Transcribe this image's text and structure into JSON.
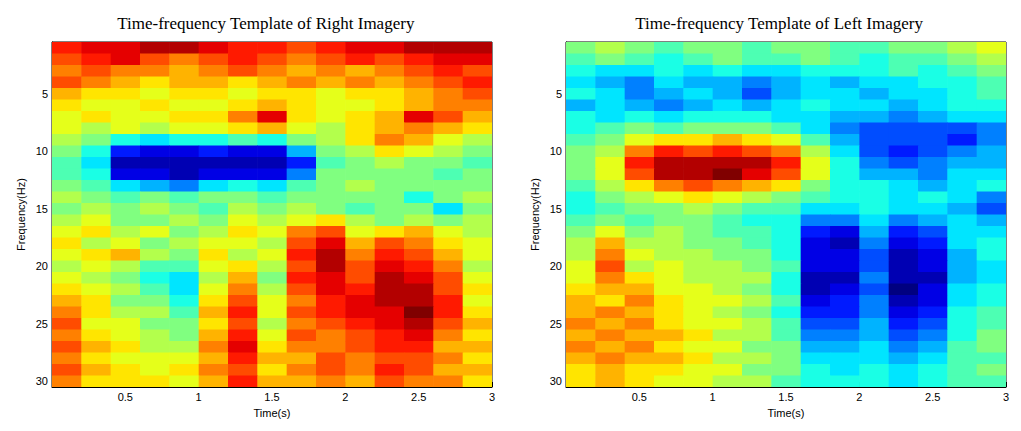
{
  "chart_data": [
    {
      "type": "heatmap",
      "title": "Time-frequency Template of Right Imagery",
      "xlabel": "Time(s)",
      "ylabel": "Frequency(Hz)",
      "x": [
        0.1,
        0.3,
        0.5,
        0.7,
        0.9,
        1.1,
        1.3,
        1.5,
        1.7,
        1.9,
        2.1,
        2.3,
        2.5,
        2.7,
        2.9
      ],
      "y": [
        1,
        2,
        3,
        4,
        5,
        6,
        7,
        8,
        9,
        10,
        11,
        12,
        13,
        14,
        15,
        16,
        17,
        18,
        19,
        20,
        21,
        22,
        23,
        24,
        25,
        26,
        27,
        28,
        29,
        30
      ],
      "xlim": [
        0,
        3
      ],
      "ylim": [
        30.5,
        0.5
      ],
      "xticks": [
        0.5,
        1,
        1.5,
        2,
        2.5,
        3
      ],
      "yticks": [
        5,
        10,
        15,
        20,
        25,
        30
      ],
      "color_range": [
        -1,
        1
      ],
      "values": [
        [
          0.7,
          0.8,
          0.8,
          0.9,
          0.9,
          0.8,
          0.7,
          0.7,
          0.6,
          0.7,
          0.8,
          0.8,
          0.9,
          0.9,
          0.9
        ],
        [
          0.6,
          0.7,
          0.8,
          0.6,
          0.5,
          0.6,
          0.7,
          0.6,
          0.5,
          0.6,
          0.7,
          0.6,
          0.7,
          0.8,
          0.8
        ],
        [
          0.5,
          0.6,
          0.5,
          0.5,
          0.4,
          0.5,
          0.6,
          0.5,
          0.4,
          0.5,
          0.4,
          0.5,
          0.6,
          0.7,
          0.6
        ],
        [
          0.6,
          0.5,
          0.4,
          0.3,
          0.4,
          0.4,
          0.3,
          0.4,
          0.5,
          0.4,
          0.5,
          0.4,
          0.5,
          0.6,
          0.7
        ],
        [
          0.4,
          0.3,
          0.3,
          0.2,
          0.3,
          0.3,
          0.2,
          0.3,
          0.3,
          0.2,
          0.3,
          0.3,
          0.4,
          0.5,
          0.6
        ],
        [
          0.3,
          0.2,
          0.2,
          0.3,
          0.2,
          0.2,
          0.3,
          0.4,
          0.3,
          0.2,
          0.2,
          0.3,
          0.4,
          0.5,
          0.5
        ],
        [
          0.2,
          0.3,
          0.2,
          0.2,
          0.3,
          0.3,
          0.5,
          0.8,
          0.3,
          0.2,
          0.3,
          0.4,
          0.8,
          0.6,
          0.4
        ],
        [
          0.2,
          0.1,
          0.2,
          0.1,
          0.2,
          0.2,
          0.3,
          0.4,
          0.2,
          0.1,
          0.3,
          0.4,
          0.5,
          0.4,
          0.3
        ],
        [
          0.1,
          0.0,
          -0.2,
          -0.3,
          -0.2,
          -0.2,
          -0.1,
          -0.2,
          0.0,
          0.1,
          0.3,
          0.5,
          0.4,
          0.2,
          0.1
        ],
        [
          0.0,
          -0.2,
          -0.7,
          -0.8,
          -0.8,
          -0.7,
          -0.8,
          -0.8,
          -0.4,
          0.0,
          0.1,
          0.3,
          0.2,
          0.1,
          0.0
        ],
        [
          -0.1,
          -0.3,
          -0.9,
          -0.9,
          -0.9,
          -0.9,
          -0.9,
          -0.9,
          -0.7,
          -0.1,
          0.0,
          0.1,
          0.0,
          0.0,
          -0.1
        ],
        [
          -0.1,
          -0.2,
          -0.8,
          -0.8,
          -0.9,
          -0.8,
          -0.8,
          -0.8,
          -0.5,
          0.0,
          0.0,
          0.0,
          0.0,
          -0.1,
          0.0
        ],
        [
          0.0,
          -0.1,
          -0.3,
          -0.4,
          -0.5,
          -0.3,
          -0.2,
          -0.3,
          -0.1,
          0.0,
          0.1,
          0.0,
          0.0,
          0.0,
          0.0
        ],
        [
          0.1,
          0.0,
          -0.1,
          0.0,
          -0.1,
          0.0,
          0.0,
          -0.1,
          0.0,
          0.0,
          0.0,
          0.0,
          -0.2,
          0.0,
          0.1
        ],
        [
          0.0,
          0.1,
          0.0,
          0.1,
          0.0,
          -0.1,
          0.1,
          0.0,
          0.1,
          0.0,
          -0.1,
          0.0,
          0.0,
          -0.3,
          0.0
        ],
        [
          0.1,
          0.2,
          0.0,
          0.0,
          0.1,
          0.0,
          0.2,
          0.1,
          0.2,
          0.3,
          0.1,
          0.0,
          0.1,
          0.0,
          0.1
        ],
        [
          0.2,
          0.3,
          0.1,
          0.2,
          0.0,
          0.1,
          0.3,
          0.2,
          0.5,
          0.6,
          0.2,
          0.3,
          0.4,
          0.2,
          0.1
        ],
        [
          0.3,
          0.1,
          0.2,
          0.0,
          0.1,
          0.2,
          0.2,
          0.1,
          0.6,
          0.8,
          0.4,
          0.6,
          0.5,
          0.3,
          0.2
        ],
        [
          0.2,
          0.3,
          0.4,
          0.1,
          0.0,
          0.3,
          0.1,
          0.2,
          0.7,
          0.9,
          0.5,
          0.7,
          0.6,
          0.4,
          0.2
        ],
        [
          0.1,
          0.2,
          0.1,
          -0.1,
          -0.1,
          0.2,
          0.3,
          0.1,
          0.6,
          0.9,
          0.6,
          0.8,
          0.7,
          0.5,
          0.1
        ],
        [
          0.2,
          0.1,
          0.0,
          -0.2,
          -0.3,
          0.1,
          0.4,
          0.0,
          0.7,
          0.8,
          0.6,
          0.9,
          0.8,
          0.6,
          0.2
        ],
        [
          0.3,
          0.2,
          0.1,
          -0.1,
          -0.3,
          0.2,
          0.5,
          0.1,
          0.6,
          0.8,
          0.7,
          0.9,
          0.9,
          0.6,
          0.3
        ],
        [
          0.4,
          0.3,
          0.0,
          0.0,
          -0.2,
          0.3,
          0.6,
          0.2,
          0.5,
          0.7,
          0.8,
          0.9,
          0.9,
          0.7,
          0.2
        ],
        [
          0.5,
          0.3,
          0.1,
          0.1,
          -0.1,
          0.4,
          0.7,
          0.2,
          0.6,
          0.7,
          0.8,
          0.8,
          1.0,
          0.7,
          0.3
        ],
        [
          0.6,
          0.2,
          0.2,
          0.0,
          0.0,
          0.3,
          0.6,
          0.1,
          0.5,
          0.6,
          0.7,
          0.8,
          0.9,
          0.6,
          0.4
        ],
        [
          0.5,
          0.3,
          0.2,
          0.1,
          0.0,
          0.4,
          0.7,
          0.2,
          0.6,
          0.5,
          0.6,
          0.7,
          0.8,
          0.5,
          0.3
        ],
        [
          0.6,
          0.4,
          0.3,
          0.1,
          0.1,
          0.5,
          0.8,
          0.3,
          0.5,
          0.5,
          0.6,
          0.7,
          0.7,
          0.4,
          0.4
        ],
        [
          0.5,
          0.3,
          0.2,
          0.2,
          0.2,
          0.4,
          0.7,
          0.4,
          0.4,
          0.6,
          0.5,
          0.6,
          0.6,
          0.5,
          0.3
        ],
        [
          0.6,
          0.4,
          0.3,
          0.2,
          0.3,
          0.5,
          0.6,
          0.3,
          0.5,
          0.6,
          0.5,
          0.7,
          0.6,
          0.4,
          0.4
        ],
        [
          0.5,
          0.3,
          0.3,
          0.3,
          0.2,
          0.4,
          0.7,
          0.4,
          0.4,
          0.5,
          0.4,
          0.6,
          0.5,
          0.5,
          0.3
        ]
      ]
    },
    {
      "type": "heatmap",
      "title": "Time-frequency Template of Left Imagery",
      "xlabel": "Time(s)",
      "ylabel": "Frequency(Hz)",
      "x": [
        0.1,
        0.3,
        0.5,
        0.7,
        0.9,
        1.1,
        1.3,
        1.5,
        1.7,
        1.9,
        2.1,
        2.3,
        2.5,
        2.7,
        2.9
      ],
      "y": [
        1,
        2,
        3,
        4,
        5,
        6,
        7,
        8,
        9,
        10,
        11,
        12,
        13,
        14,
        15,
        16,
        17,
        18,
        19,
        20,
        21,
        22,
        23,
        24,
        25,
        26,
        27,
        28,
        29,
        30
      ],
      "xlim": [
        0,
        3
      ],
      "ylim": [
        30.5,
        0.5
      ],
      "xticks": [
        0.5,
        1,
        1.5,
        2,
        2.5,
        3
      ],
      "yticks": [
        5,
        10,
        15,
        20,
        25,
        30
      ],
      "color_range": [
        -1,
        1
      ],
      "values": [
        [
          0.0,
          0.1,
          0.0,
          -0.1,
          0.0,
          0.0,
          -0.1,
          0.0,
          0.0,
          -0.1,
          -0.1,
          0.0,
          0.0,
          0.1,
          0.2
        ],
        [
          -0.1,
          0.0,
          -0.1,
          -0.2,
          -0.1,
          0.0,
          -0.1,
          -0.1,
          0.0,
          -0.1,
          -0.2,
          -0.1,
          -0.1,
          0.0,
          0.1
        ],
        [
          -0.2,
          -0.3,
          -0.3,
          -0.2,
          -0.3,
          -0.2,
          -0.3,
          -0.3,
          -0.2,
          -0.2,
          -0.2,
          -0.1,
          -0.2,
          -0.1,
          0.0
        ],
        [
          -0.3,
          -0.4,
          -0.5,
          -0.3,
          -0.4,
          -0.4,
          -0.5,
          -0.4,
          -0.3,
          -0.4,
          -0.3,
          -0.3,
          -0.2,
          -0.2,
          -0.1
        ],
        [
          -0.2,
          -0.3,
          -0.5,
          -0.4,
          -0.3,
          -0.4,
          -0.6,
          -0.4,
          -0.3,
          -0.3,
          -0.4,
          -0.3,
          -0.3,
          -0.2,
          -0.1
        ],
        [
          -0.4,
          -0.3,
          -0.4,
          -0.5,
          -0.4,
          -0.3,
          -0.4,
          -0.3,
          -0.2,
          -0.3,
          -0.3,
          -0.4,
          -0.3,
          -0.2,
          -0.2
        ],
        [
          -0.2,
          -0.3,
          -0.2,
          -0.3,
          -0.2,
          -0.2,
          -0.2,
          -0.3,
          -0.3,
          -0.4,
          -0.4,
          -0.5,
          -0.4,
          -0.3,
          -0.3
        ],
        [
          -0.2,
          -0.1,
          0.0,
          -0.1,
          0.0,
          0.0,
          0.0,
          -0.1,
          -0.3,
          -0.5,
          -0.6,
          -0.6,
          -0.6,
          -0.6,
          -0.5
        ],
        [
          -0.1,
          0.0,
          0.2,
          0.3,
          0.3,
          0.4,
          0.3,
          0.2,
          -0.1,
          -0.4,
          -0.6,
          -0.6,
          -0.6,
          -0.7,
          -0.5
        ],
        [
          0.0,
          0.1,
          0.5,
          0.7,
          0.6,
          0.7,
          0.6,
          0.5,
          0.1,
          -0.3,
          -0.6,
          -0.7,
          -0.6,
          -0.5,
          -0.4
        ],
        [
          0.0,
          0.2,
          0.7,
          0.9,
          0.9,
          0.9,
          0.9,
          0.7,
          0.2,
          -0.2,
          -0.5,
          -0.6,
          -0.5,
          -0.4,
          -0.4
        ],
        [
          0.0,
          0.2,
          0.6,
          0.9,
          0.9,
          1.0,
          0.8,
          0.6,
          0.2,
          -0.2,
          -0.4,
          -0.4,
          -0.5,
          -0.3,
          -0.3
        ],
        [
          -0.1,
          0.1,
          0.3,
          0.5,
          0.6,
          0.5,
          0.4,
          0.3,
          0.0,
          -0.2,
          -0.2,
          -0.3,
          -0.4,
          -0.3,
          -0.2
        ],
        [
          -0.2,
          0.0,
          0.1,
          0.2,
          0.3,
          0.2,
          0.1,
          0.0,
          -0.1,
          -0.2,
          -0.2,
          -0.3,
          -0.2,
          -0.3,
          -0.5
        ],
        [
          -0.2,
          -0.1,
          0.0,
          0.0,
          0.1,
          0.0,
          -0.1,
          -0.1,
          -0.3,
          -0.3,
          -0.2,
          -0.3,
          -0.3,
          -0.4,
          -0.6
        ],
        [
          -0.1,
          0.0,
          -0.1,
          0.0,
          0.0,
          -0.1,
          -0.2,
          -0.2,
          -0.5,
          -0.5,
          -0.3,
          -0.5,
          -0.4,
          -0.3,
          -0.4
        ],
        [
          0.0,
          0.2,
          0.0,
          0.1,
          0.0,
          -0.1,
          -0.1,
          -0.2,
          -0.7,
          -0.8,
          -0.4,
          -0.7,
          -0.6,
          -0.3,
          -0.3
        ],
        [
          0.1,
          0.4,
          0.1,
          0.1,
          0.0,
          0.0,
          -0.1,
          -0.2,
          -0.8,
          -0.9,
          -0.5,
          -0.8,
          -0.7,
          -0.3,
          -0.2
        ],
        [
          0.1,
          0.5,
          0.2,
          0.1,
          0.1,
          0.0,
          0.0,
          -0.2,
          -0.8,
          -0.8,
          -0.6,
          -0.9,
          -0.8,
          -0.4,
          -0.2
        ],
        [
          0.2,
          0.6,
          0.1,
          0.2,
          0.1,
          0.1,
          0.0,
          -0.1,
          -0.8,
          -0.8,
          -0.6,
          -0.9,
          -0.8,
          -0.4,
          -0.3
        ],
        [
          0.2,
          0.5,
          0.3,
          0.2,
          0.1,
          0.1,
          0.1,
          -0.2,
          -0.9,
          -0.9,
          -0.5,
          -0.9,
          -0.9,
          -0.4,
          -0.3
        ],
        [
          0.3,
          0.4,
          0.4,
          0.2,
          0.2,
          0.1,
          0.0,
          -0.2,
          -0.9,
          -0.8,
          -0.6,
          -1.0,
          -0.8,
          -0.3,
          -0.2
        ],
        [
          0.4,
          0.3,
          0.5,
          0.3,
          0.2,
          0.2,
          0.1,
          -0.1,
          -0.8,
          -0.7,
          -0.5,
          -0.9,
          -0.8,
          -0.3,
          -0.2
        ],
        [
          0.4,
          0.5,
          0.4,
          0.3,
          0.2,
          0.1,
          0.0,
          -0.2,
          -0.7,
          -0.7,
          -0.5,
          -0.8,
          -0.7,
          -0.2,
          -0.1
        ],
        [
          0.5,
          0.4,
          0.5,
          0.3,
          0.2,
          0.2,
          0.1,
          -0.1,
          -0.6,
          -0.6,
          -0.4,
          -0.7,
          -0.6,
          -0.2,
          -0.1
        ],
        [
          0.4,
          0.5,
          0.4,
          0.4,
          0.3,
          0.1,
          0.1,
          -0.1,
          -0.5,
          -0.5,
          -0.4,
          -0.6,
          -0.5,
          -0.2,
          0.0
        ],
        [
          0.5,
          0.4,
          0.5,
          0.3,
          0.2,
          0.2,
          0.0,
          0.0,
          -0.4,
          -0.4,
          -0.3,
          -0.5,
          -0.4,
          -0.1,
          0.0
        ],
        [
          0.4,
          0.5,
          0.4,
          0.4,
          0.3,
          0.1,
          0.1,
          0.0,
          -0.3,
          -0.3,
          -0.3,
          -0.4,
          -0.3,
          -0.1,
          -0.1
        ],
        [
          0.3,
          0.4,
          0.3,
          0.3,
          0.2,
          0.2,
          0.0,
          0.0,
          -0.2,
          -0.3,
          -0.2,
          -0.3,
          -0.2,
          -0.1,
          0.0
        ],
        [
          0.3,
          0.4,
          0.3,
          0.2,
          0.2,
          0.1,
          0.1,
          -0.1,
          -0.2,
          -0.2,
          -0.2,
          -0.3,
          -0.2,
          -0.1,
          -0.1
        ]
      ]
    }
  ]
}
